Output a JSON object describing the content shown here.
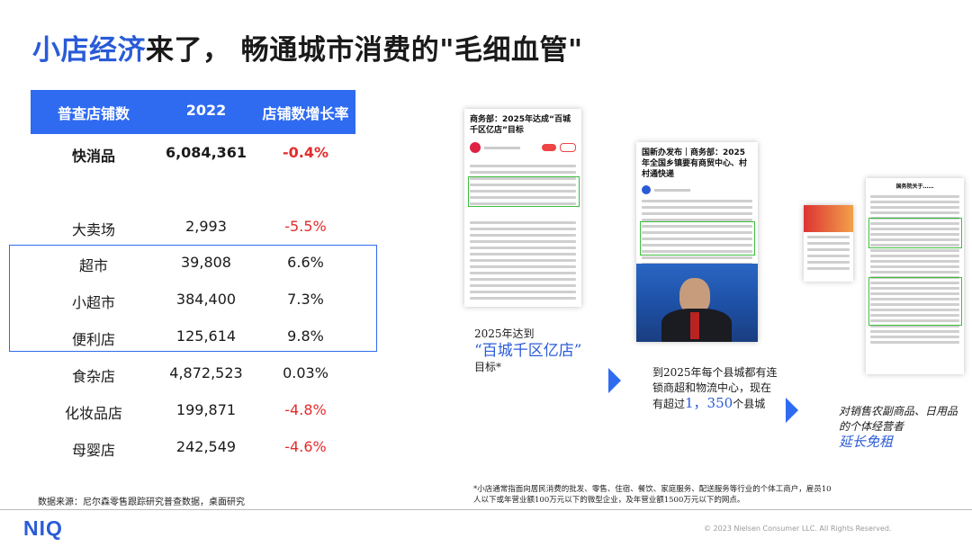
{
  "title": {
    "highlight": "小店经济",
    "rest": "来了， 畅通城市消费的\"毛细血管\""
  },
  "table": {
    "headers": [
      "普查店铺数",
      "2022",
      "店铺数增长率"
    ],
    "rows": [
      {
        "name": "快消品",
        "count": "6,084,361",
        "growth": "-0.4%",
        "negative": true,
        "bold": true
      },
      {
        "name": "大卖场",
        "count": "2,993",
        "growth": "-5.5%",
        "negative": true
      },
      {
        "name": "超市",
        "count": "39,808",
        "growth": "6.6%",
        "negative": false
      },
      {
        "name": "小超市",
        "count": "384,400",
        "growth": "7.3%",
        "negative": false
      },
      {
        "name": "便利店",
        "count": "125,614",
        "growth": "9.8%",
        "negative": false
      },
      {
        "name": "食杂店",
        "count": "4,872,523",
        "growth": "0.03%",
        "negative": false
      },
      {
        "name": "化妆品店",
        "count": "199,871",
        "growth": "-4.8%",
        "negative": true
      },
      {
        "name": "母婴店",
        "count": "242,549",
        "growth": "-4.6%",
        "negative": true
      }
    ]
  },
  "source": "数据来源：尼尔森零售跟踪研究普查数据，桌面研究",
  "articles": [
    {
      "headline": "商务部：2025年达成“百城千区亿店”目标"
    },
    {
      "headline": "国新办发布｜商务部：2025年全国乡镇要有商贸中心、村村通快递"
    },
    {
      "headline": "国务院关于……"
    }
  ],
  "captions": {
    "c1": {
      "pre": "2025年达到",
      "highlight": "“百城千区亿店”",
      "post": "目标*"
    },
    "c2": {
      "pre": "到2025年每个县城都有连锁商超和物流中心，现在有超过",
      "number": "1，350",
      "post": "个县城"
    },
    "c3": {
      "pre": "对销售农副商品、日用品的个体经营者",
      "highlight": "延长免租"
    }
  },
  "footnote": "*小店通常指面向居民消费的批发、零售、住宿、餐饮、家庭服务、配送服务等行业的个体工商户，雇员10人以下或年营业额100万元以下的微型企业，及年营业额1500万元以下的网点。",
  "logo": "NIQ",
  "copyright": "© 2023 Nielsen Consumer LLC. All Rights Reserved.",
  "colors": {
    "accent": "#2f6bf0",
    "negative": "#e32b2b",
    "highlight_box": "#3dbf3d"
  }
}
